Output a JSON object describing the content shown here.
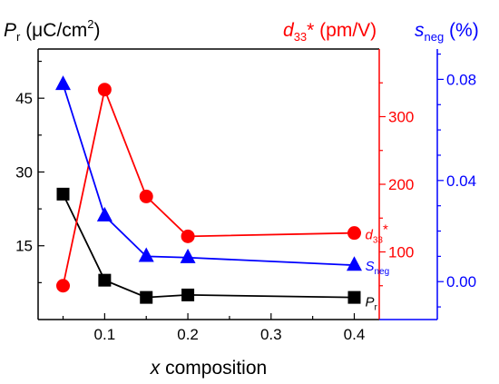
{
  "chart_data": {
    "type": "line",
    "x": [
      0.05,
      0.1,
      0.15,
      0.2,
      0.4
    ],
    "xlabel": {
      "var": "x",
      "rest": " composition"
    },
    "xlim": [
      0.02,
      0.43
    ],
    "x_ticks": [
      "0.1",
      "0.2",
      "0.3",
      "0.4"
    ],
    "x_tick_values": [
      0.1,
      0.2,
      0.3,
      0.4
    ],
    "grid": false,
    "series": [
      {
        "key": "pr",
        "axis": "left",
        "name_main": "P",
        "name_sub": "r",
        "values": [
          25.5,
          8.0,
          4.5,
          5.0,
          4.5
        ],
        "color": "#000000",
        "marker": "square"
      },
      {
        "key": "d33",
        "axis": "right1",
        "name_main": "d",
        "name_sub": "33",
        "name_sup": "*",
        "values": [
          50,
          340,
          182,
          123,
          128
        ],
        "color": "#ff0000",
        "marker": "circle"
      },
      {
        "key": "sneg",
        "axis": "right2",
        "name_main": "S",
        "name_sub": "neg",
        "values": [
          0.078,
          0.026,
          0.01,
          0.0095,
          0.0065
        ],
        "color": "#0000ff",
        "marker": "triangle"
      }
    ],
    "axes": {
      "left": {
        "label_main": "P",
        "label_sub": "r",
        "label_rest": " (μC/cm",
        "label_sup": "2",
        "label_end": ")",
        "ylim": [
          0,
          55
        ],
        "ticks": [
          "15",
          "30",
          "45"
        ],
        "tick_values": [
          15,
          30,
          45
        ],
        "color": "#000000"
      },
      "right1": {
        "label_main": "d",
        "label_sub": "33",
        "label_rest": "* (pm/V)",
        "ylim": [
          0,
          400
        ],
        "ticks": [
          "100",
          "200",
          "300"
        ],
        "tick_values": [
          100,
          200,
          300
        ],
        "color": "#ff0000"
      },
      "right2": {
        "label_main": "s",
        "label_sub": "neg",
        "label_rest": " (%)",
        "ylim": [
          -0.015,
          0.092
        ],
        "ticks": [
          "0.00",
          "0.04",
          "0.08"
        ],
        "tick_values": [
          0.0,
          0.04,
          0.08
        ],
        "color": "#0000ff"
      }
    }
  }
}
